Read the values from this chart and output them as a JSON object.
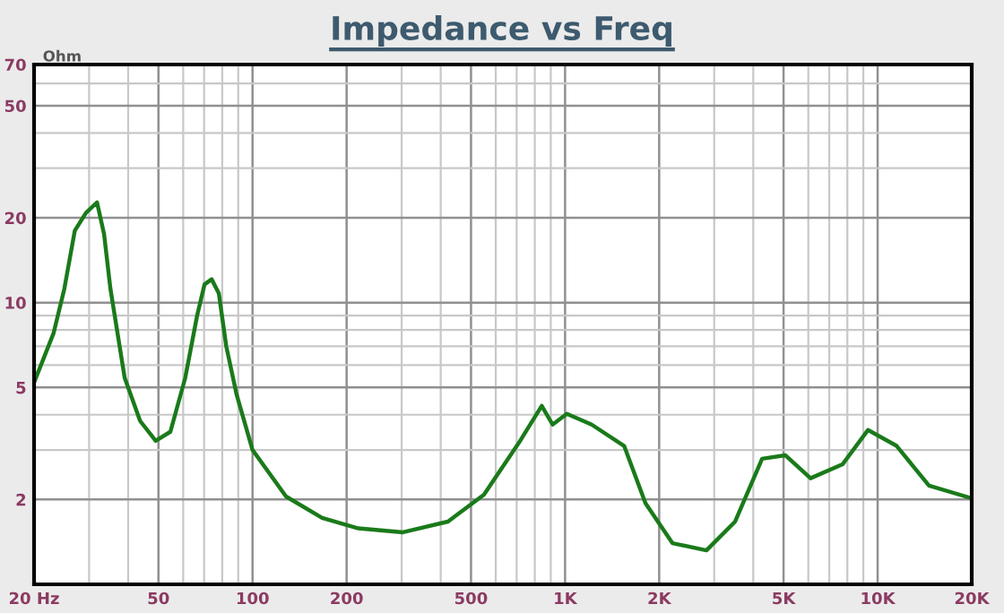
{
  "chart_data": {
    "type": "line",
    "title": "Impedance vs Freq",
    "ylabel": "Ohm",
    "x": [
      20,
      23.1,
      25.0,
      27.0,
      29.3,
      31.8,
      33.5,
      35.1,
      39.0,
      43.7,
      49.0,
      54.6,
      60.9,
      66.5,
      70.2,
      74.0,
      78.0,
      82.4,
      89.0,
      100,
      128,
      167,
      218,
      303,
      422,
      550,
      718,
      842,
      912,
      1013,
      1216,
      1545,
      1808,
      2205,
      2833,
      3500,
      4270,
      5070,
      6100,
      7730,
      9310,
      11500,
      14600,
      20000
    ],
    "series": [
      {
        "color": "#1a7a1a",
        "values": [
          5.2,
          7.8,
          11.2,
          18.0,
          20.8,
          22.7,
          17.5,
          11.2,
          5.4,
          3.8,
          3.23,
          3.48,
          5.4,
          9.0,
          11.6,
          12.1,
          10.8,
          7.0,
          4.7,
          3.0,
          2.05,
          1.72,
          1.58,
          1.53,
          1.67,
          2.08,
          3.23,
          4.3,
          3.69,
          4.03,
          3.69,
          3.1,
          1.94,
          1.4,
          1.32,
          1.67,
          2.79,
          2.87,
          2.38,
          2.67,
          3.53,
          3.1,
          2.24,
          2.02
        ]
      }
    ],
    "log": "xy",
    "xlim": [
      20,
      20000
    ],
    "ylim": [
      1,
      70
    ],
    "xticks": [
      {
        "value": 20,
        "label": "20 Hz"
      },
      50,
      100,
      200,
      500,
      {
        "value": 1000,
        "label": "1K"
      },
      {
        "value": 2000,
        "label": "2K"
      },
      {
        "value": 5000,
        "label": "5K"
      },
      {
        "value": 10000,
        "label": "10K"
      },
      {
        "value": 20000,
        "label": "20K"
      }
    ],
    "yticks": [
      2,
      5,
      10,
      20,
      50,
      70
    ],
    "grid": true,
    "line_style": "solid",
    "marker": "none"
  }
}
